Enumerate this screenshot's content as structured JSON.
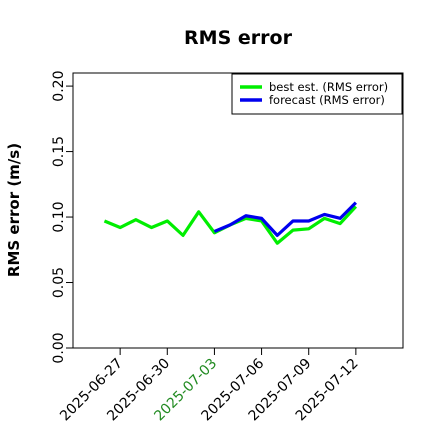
{
  "chart_data": {
    "type": "line",
    "title": "RMS error",
    "xlabel": "",
    "ylabel": "RMS error (m/s)",
    "ylim": [
      0,
      0.21
    ],
    "yticks": [
      0.0,
      0.05,
      0.1,
      0.15,
      0.2
    ],
    "ytick_labels": [
      "0.00",
      "0.05",
      "0.10",
      "0.15",
      "0.20"
    ],
    "xlim": [
      "2025-06-24",
      "2025-07-15"
    ],
    "xticks": [
      "2025-06-27",
      "2025-06-30",
      "2025-07-03",
      "2025-07-06",
      "2025-07-09",
      "2025-07-12"
    ],
    "xtick_colors": [
      "#000000",
      "#000000",
      "#228b22",
      "#000000",
      "#000000",
      "#000000"
    ],
    "grid": false,
    "legend_position": "top-right",
    "series": [
      {
        "name": "best est. (RMS error)",
        "color": "#00ee00",
        "x": [
          "2025-06-26",
          "2025-06-27",
          "2025-06-28",
          "2025-06-29",
          "2025-06-30",
          "2025-07-01",
          "2025-07-02",
          "2025-07-03",
          "2025-07-04",
          "2025-07-05",
          "2025-07-06",
          "2025-07-07",
          "2025-07-08",
          "2025-07-09",
          "2025-07-10",
          "2025-07-11",
          "2025-07-12"
        ],
        "values": [
          0.097,
          0.092,
          0.098,
          0.092,
          0.097,
          0.086,
          0.104,
          0.088,
          0.094,
          0.099,
          0.097,
          0.08,
          0.09,
          0.091,
          0.099,
          0.095,
          0.108
        ]
      },
      {
        "name": "forecast (RMS error)",
        "color": "#0000ee",
        "x": [
          "2025-07-03",
          "2025-07-04",
          "2025-07-05",
          "2025-07-06",
          "2025-07-07",
          "2025-07-08",
          "2025-07-09",
          "2025-07-10",
          "2025-07-11",
          "2025-07-12"
        ],
        "values": [
          0.089,
          0.094,
          0.101,
          0.099,
          0.086,
          0.097,
          0.097,
          0.102,
          0.099,
          0.111
        ]
      }
    ]
  }
}
